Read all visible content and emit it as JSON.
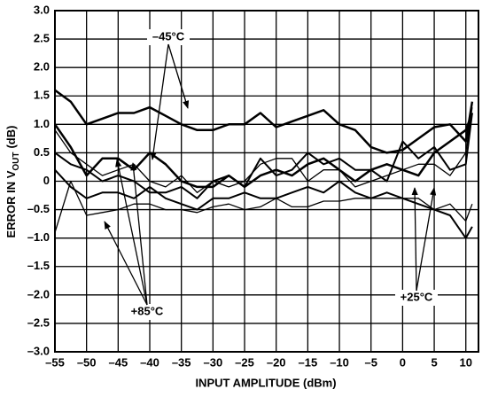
{
  "chart_data": {
    "type": "line",
    "xlabel": "INPUT AMPLITUDE (dBm)",
    "ylabel": "ERROR IN V",
    "ylabel_sub": "OUT",
    "ylabel_end": "(dB)",
    "xlim": [
      -55,
      12
    ],
    "ylim": [
      -3,
      3
    ],
    "xticks": [
      {
        "value": -55,
        "label": "–55"
      },
      {
        "value": -50,
        "label": "–50"
      },
      {
        "value": -45,
        "label": "–45"
      },
      {
        "value": -40,
        "label": "–40"
      },
      {
        "value": -35,
        "label": "–35"
      },
      {
        "value": -30,
        "label": "–30"
      },
      {
        "value": -25,
        "label": "–25"
      },
      {
        "value": -20,
        "label": "–20"
      },
      {
        "value": -15,
        "label": "–15"
      },
      {
        "value": -10,
        "label": "–10"
      },
      {
        "value": -5,
        "label": "–5"
      },
      0,
      5,
      10
    ],
    "yticks": [
      {
        "value": 3,
        "label": "3.0"
      },
      {
        "value": 2.5,
        "label": "2.5"
      },
      {
        "value": 2,
        "label": "2.0"
      },
      {
        "value": 1.5,
        "label": "1.5"
      },
      {
        "value": 1,
        "label": "1.0"
      },
      0.5,
      0,
      {
        "value": -0.5,
        "label": "–0.5"
      },
      {
        "value": -1,
        "label": "–1.0"
      },
      {
        "value": -1.5,
        "label": "–1.5"
      },
      {
        "value": -2,
        "label": "–2.0"
      },
      {
        "value": -2.5,
        "label": "–2.5"
      },
      {
        "value": -3,
        "label": "–3.0"
      }
    ],
    "grid": true,
    "x": [
      -55,
      -52.5,
      -50,
      -47.5,
      -45,
      -42.5,
      -40,
      -37.5,
      -35,
      -32.5,
      -30,
      -27.5,
      -25,
      -22.5,
      -20,
      -17.5,
      -15,
      -12.5,
      -10,
      -7.5,
      -5,
      -2.5,
      0,
      2.5,
      5,
      7.5,
      10,
      11
    ],
    "series": [
      {
        "color": "#000000",
        "line_width": 2.5,
        "values": [
          1.6,
          1.4,
          1.0,
          1.1,
          1.2,
          1.2,
          1.3,
          1.15,
          1.0,
          0.9,
          0.9,
          1.0,
          1.0,
          1.2,
          0.95,
          1.05,
          1.15,
          1.25,
          1.0,
          0.9,
          0.6,
          0.5,
          0.55,
          0.75,
          0.95,
          1.0,
          0.7,
          1.4
        ]
      },
      {
        "color": "#000000",
        "line_width": 2.5,
        "values": [
          1.0,
          0.6,
          0.1,
          0.4,
          0.4,
          0.2,
          0.5,
          0.3,
          0.0,
          -0.1,
          -0.1,
          0.1,
          -0.1,
          0.1,
          0.2,
          0.1,
          0.3,
          0.4,
          0.2,
          0.0,
          0.2,
          0.3,
          0.2,
          0.1,
          0.5,
          0.7,
          0.9,
          1.2
        ]
      },
      {
        "color": "#000000",
        "line_width": 1.3,
        "values": [
          0.9,
          0.5,
          0.3,
          0.1,
          0.2,
          0.3,
          0.0,
          -0.1,
          0.1,
          -0.2,
          0.0,
          -0.1,
          0.0,
          0.3,
          0.4,
          0.4,
          0.0,
          0.2,
          0.2,
          -0.1,
          0.0,
          0.1,
          0.2,
          0.3,
          0.3,
          0.1,
          0.5,
          1.3
        ]
      },
      {
        "color": "#000000",
        "line_width": 1.3,
        "values": [
          -0.9,
          0.0,
          -0.6,
          -0.55,
          -0.5,
          -0.4,
          -0.4,
          -0.5,
          -0.5,
          -0.55,
          -0.45,
          -0.4,
          -0.5,
          -0.45,
          -0.3,
          -0.45,
          -0.45,
          -0.35,
          -0.35,
          -0.3,
          -0.3,
          -0.3,
          -0.3,
          -0.3,
          -0.5,
          -0.4,
          -0.7,
          -0.4
        ]
      },
      {
        "color": "#000000",
        "line_width": 2.0,
        "values": [
          0.5,
          0.3,
          0.2,
          0.0,
          0.1,
          0.0,
          -0.2,
          -0.2,
          -0.1,
          -0.3,
          0.0,
          0.1,
          -0.1,
          0.4,
          0.1,
          0.2,
          0.5,
          0.3,
          0.4,
          0.2,
          0.2,
          0.0,
          0.7,
          0.4,
          0.6,
          0.2,
          0.3,
          1.2
        ]
      },
      {
        "color": "#000000",
        "line_width": 2.0,
        "values": [
          0.2,
          -0.1,
          -0.3,
          -0.2,
          -0.2,
          -0.3,
          -0.1,
          -0.3,
          -0.4,
          -0.5,
          -0.3,
          -0.3,
          -0.2,
          -0.3,
          -0.3,
          -0.2,
          -0.1,
          -0.2,
          0.0,
          -0.2,
          -0.3,
          -0.2,
          -0.3,
          -0.4,
          -0.5,
          -0.6,
          -1.0,
          -0.8
        ]
      }
    ],
    "annotations": [
      "–45°C",
      "+85°C",
      "+25°C"
    ]
  }
}
